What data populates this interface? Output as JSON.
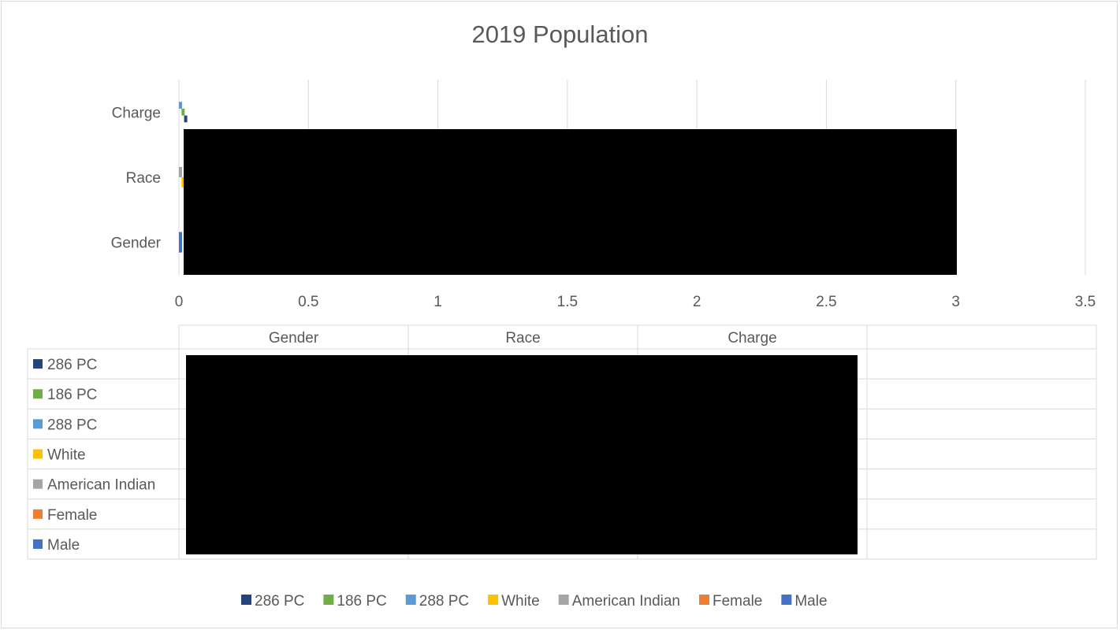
{
  "chart_data": {
    "type": "bar",
    "orientation": "horizontal",
    "stacked": true,
    "title": "2019 Population",
    "categories": [
      "Gender",
      "Race",
      "Charge"
    ],
    "xlim": [
      0,
      3.5
    ],
    "x_ticks": [
      "0",
      "0.5",
      "1",
      "1.5",
      "2",
      "2.5",
      "3",
      "3.5"
    ],
    "grid": true,
    "legend_position": "bottom",
    "data_table": true,
    "series": [
      {
        "name": "286 PC",
        "color": "#264478",
        "values": [
          0,
          0,
          0.01
        ]
      },
      {
        "name": "186 PC",
        "color": "#70AD47",
        "values": [
          0,
          0,
          0.01
        ]
      },
      {
        "name": "288 PC",
        "color": "#5B9BD5",
        "values": [
          0,
          0,
          0.01
        ]
      },
      {
        "name": "White",
        "color": "#FFC000",
        "values": [
          0,
          0.01,
          0
        ]
      },
      {
        "name": "American Indian",
        "color": "#A5A5A5",
        "values": [
          0,
          0.01,
          0
        ]
      },
      {
        "name": "Female",
        "color": "#ED7D31",
        "values": [
          0,
          0,
          0
        ]
      },
      {
        "name": "Male",
        "color": "#4472C4",
        "values": [
          0.01,
          0,
          0
        ]
      }
    ],
    "redaction_color": "#000000"
  }
}
